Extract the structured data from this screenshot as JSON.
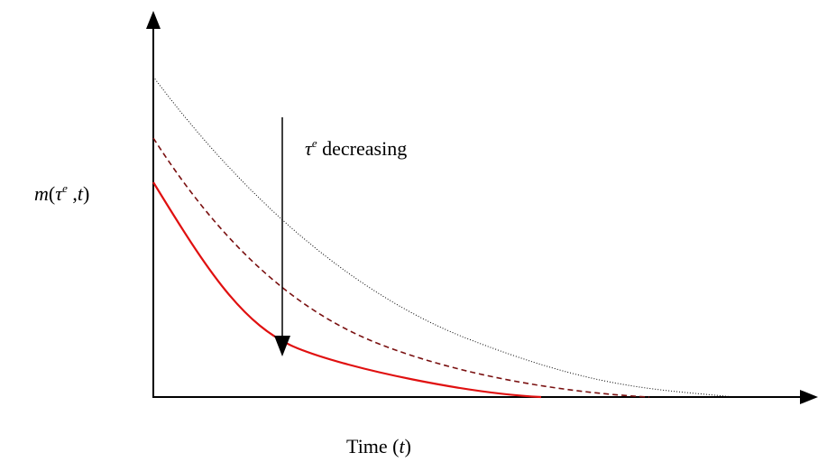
{
  "y_axis_label": {
    "parts": [
      "m",
      "(",
      "τ",
      "e",
      " ,",
      "t",
      ")"
    ]
  },
  "annotation": {
    "parts": [
      "τ",
      "e",
      " decreasing"
    ]
  },
  "x_axis_label": {
    "parts": [
      "Time (",
      "t",
      ")"
    ]
  }
}
